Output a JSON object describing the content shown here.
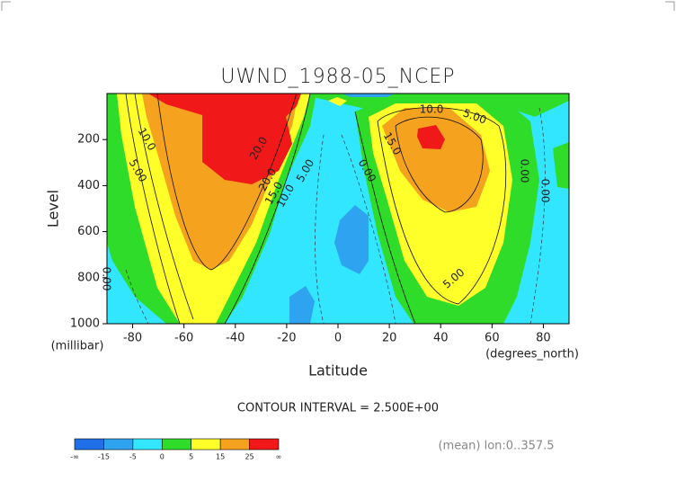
{
  "chart_data": {
    "type": "contour",
    "title": "UWND_1988-05_NCEP",
    "xlabel": "Latitude",
    "ylabel": "Level",
    "x_unit": "(degrees_north)",
    "y_unit": "(millibar)",
    "xlim": [
      -90,
      90
    ],
    "xticks": [
      -80,
      -60,
      -40,
      -20,
      0,
      20,
      40,
      60,
      80
    ],
    "ylim": [
      1000,
      0
    ],
    "yticks": [
      200,
      400,
      600,
      800,
      1000
    ],
    "contour_interval_text": "CONTOUR INTERVAL = 2.500E+00",
    "note": "(mean) lon:0..357.5",
    "levels": [
      "-∞",
      -15,
      -5,
      0,
      5,
      15,
      25,
      "∞"
    ],
    "colors": [
      "#1f6fe8",
      "#2ea4f0",
      "#33e6ff",
      "#2fdc2a",
      "#ffff2a",
      "#f5a21e",
      "#f01818"
    ],
    "contour_labels": [
      {
        "value": 10,
        "label": "10.0"
      },
      {
        "value": 5,
        "label": "5.00"
      },
      {
        "value": 10,
        "label": "10.0"
      },
      {
        "value": 5,
        "label": "5.00"
      },
      {
        "value": 15,
        "label": "15.0"
      },
      {
        "value": 20,
        "label": "20.0"
      },
      {
        "value": 20,
        "label": "20.0"
      },
      {
        "value": 15,
        "label": "15.0"
      },
      {
        "value": 10,
        "label": "10.0"
      },
      {
        "value": 5,
        "label": "5.00"
      },
      {
        "value": 0,
        "label": "0.00"
      },
      {
        "value": 0,
        "label": "0.00"
      },
      {
        "value": 0,
        "label": "0.00"
      },
      {
        "value": 0,
        "label": "0.00"
      },
      {
        "value": 5,
        "label": "5.00"
      }
    ]
  }
}
